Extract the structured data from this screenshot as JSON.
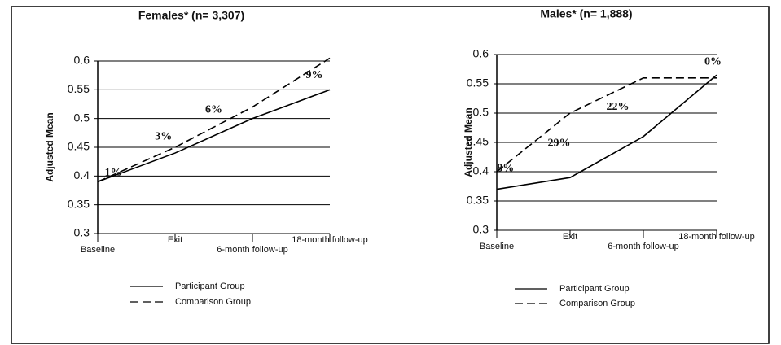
{
  "chart_data": [
    {
      "type": "line",
      "title": "Females* (n= 3,307)",
      "y_label": "Adjusted Mean",
      "categories": [
        "Baseline",
        "Exit",
        "6-month follow-up",
        "18-month follow-up"
      ],
      "series": [
        {
          "name": "Participant Group",
          "color": "#000000",
          "dash": "solid",
          "values": [
            0.39,
            0.44,
            0.5,
            0.55
          ]
        },
        {
          "name": "Comparison Group",
          "color": "#000000",
          "dash": "dashed",
          "values": [
            0.39,
            0.45,
            0.52,
            0.605
          ]
        }
      ],
      "annotations": [
        "1%",
        "3%",
        "6%",
        "9%"
      ],
      "ylim": [
        0.3,
        0.6
      ],
      "yticks": [
        0.6,
        0.55,
        0.5,
        0.45,
        0.4,
        0.35,
        0.3
      ],
      "grid": true
    },
    {
      "type": "line",
      "title": "Males* (n= 1,888)",
      "y_label": "Adjusted Mean",
      "categories": [
        "Baseline",
        "Exit",
        "6-month follow-up",
        "18-month follow-up"
      ],
      "series": [
        {
          "name": "Participant Group",
          "color": "#000000",
          "dash": "solid",
          "values": [
            0.37,
            0.39,
            0.46,
            0.565
          ]
        },
        {
          "name": "Comparison Group",
          "color": "#000000",
          "dash": "dashed",
          "values": [
            0.4,
            0.5,
            0.56,
            0.56
          ]
        }
      ],
      "annotations": [
        "8%",
        "29%",
        "22%",
        "0%"
      ],
      "ylim": [
        0.3,
        0.6
      ],
      "yticks": [
        0.6,
        0.55,
        0.5,
        0.45,
        0.4,
        0.35,
        0.3
      ],
      "grid": true
    }
  ]
}
